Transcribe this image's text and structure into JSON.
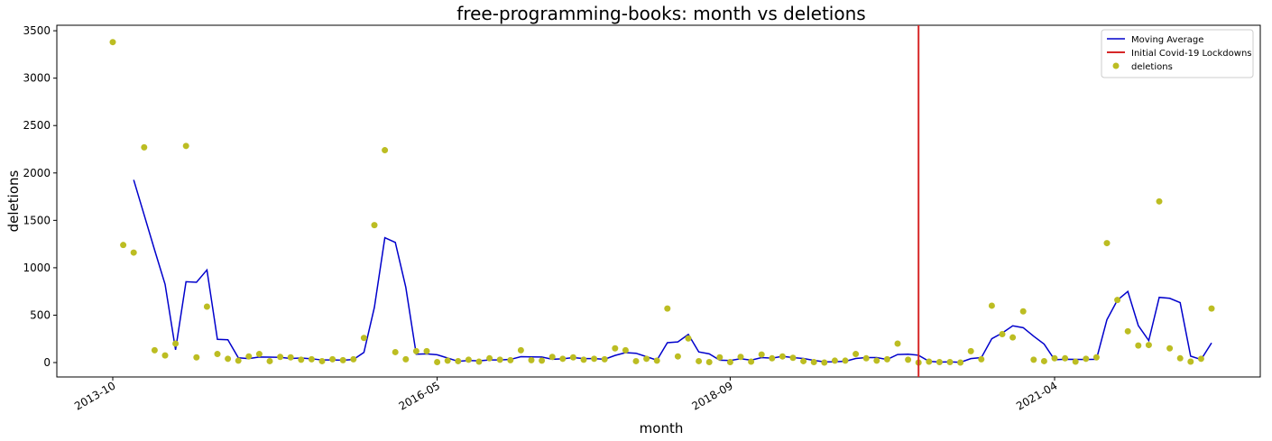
{
  "chart_data": {
    "type": "scatter",
    "title": "free-programming-books: month vs deletions",
    "xlabel": "month",
    "ylabel": "deletions",
    "x": [
      "2013-10",
      "2013-11",
      "2013-12",
      "2014-01",
      "2014-02",
      "2014-03",
      "2014-04",
      "2014-05",
      "2014-06",
      "2014-07",
      "2014-08",
      "2014-09",
      "2014-10",
      "2014-11",
      "2014-12",
      "2015-01",
      "2015-02",
      "2015-03",
      "2015-04",
      "2015-05",
      "2015-06",
      "2015-07",
      "2015-08",
      "2015-09",
      "2015-10",
      "2015-11",
      "2015-12",
      "2016-01",
      "2016-02",
      "2016-03",
      "2016-04",
      "2016-05",
      "2016-06",
      "2016-07",
      "2016-08",
      "2016-09",
      "2016-10",
      "2016-11",
      "2016-12",
      "2017-01",
      "2017-02",
      "2017-03",
      "2017-04",
      "2017-05",
      "2017-06",
      "2017-07",
      "2017-08",
      "2017-09",
      "2017-10",
      "2017-11",
      "2017-12",
      "2018-01",
      "2018-02",
      "2018-03",
      "2018-04",
      "2018-05",
      "2018-06",
      "2018-07",
      "2018-08",
      "2018-09",
      "2018-10",
      "2018-11",
      "2018-12",
      "2019-01",
      "2019-02",
      "2019-03",
      "2019-04",
      "2019-05",
      "2019-06",
      "2019-07",
      "2019-08",
      "2019-09",
      "2019-10",
      "2019-11",
      "2019-12",
      "2020-01",
      "2020-02",
      "2020-03",
      "2020-04",
      "2020-05",
      "2020-06",
      "2020-07",
      "2020-08",
      "2020-09",
      "2020-10",
      "2020-11",
      "2020-12",
      "2021-01",
      "2021-02",
      "2021-03",
      "2021-04",
      "2021-05",
      "2021-06",
      "2021-07",
      "2021-08",
      "2021-09",
      "2021-10",
      "2021-11",
      "2021-12",
      "2022-01",
      "2022-02",
      "2022-03",
      "2022-04",
      "2022-05",
      "2022-06",
      "2022-07"
    ],
    "series": [
      {
        "name": "Moving Average",
        "kind": "line",
        "color": "#0000cc",
        "values": [
          null,
          null,
          1927,
          1557,
          1187,
          825,
          135,
          853,
          847,
          977,
          245,
          240,
          50,
          42,
          58,
          57,
          55,
          43,
          48,
          40,
          27,
          28,
          25,
          32,
          107,
          582,
          1317,
          1267,
          795,
          88,
          92,
          82,
          48,
          13,
          22,
          18,
          28,
          28,
          33,
          62,
          60,
          58,
          35,
          40,
          52,
          42,
          42,
          35,
          75,
          105,
          98,
          62,
          25,
          210,
          218,
          297,
          112,
          92,
          25,
          22,
          40,
          25,
          52,
          47,
          65,
          53,
          43,
          23,
          7,
          8,
          13,
          43,
          52,
          52,
          33,
          85,
          88,
          77,
          13,
          5,
          7,
          3,
          42,
          52,
          252,
          312,
          388,
          368,
          278,
          195,
          30,
          35,
          33,
          32,
          35,
          452,
          658,
          750,
          390,
          232,
          688,
          678,
          632,
          68,
          32,
          207
        ]
      },
      {
        "name": "deletions",
        "kind": "scatter",
        "color": "#bcbd22",
        "values": [
          3380,
          1240,
          1160,
          2270,
          130,
          75,
          200,
          2285,
          55,
          590,
          90,
          40,
          20,
          65,
          90,
          15,
          60,
          55,
          30,
          35,
          15,
          35,
          25,
          35,
          260,
          1450,
          2240,
          110,
          35,
          120,
          120,
          5,
          20,
          15,
          30,
          10,
          45,
          30,
          25,
          130,
          25,
          20,
          60,
          40,
          55,
          30,
          40,
          35,
          150,
          130,
          15,
          40,
          20,
          570,
          65,
          255,
          15,
          5,
          55,
          5,
          60,
          10,
          85,
          45,
          65,
          50,
          15,
          5,
          0,
          20,
          20,
          90,
          45,
          20,
          35,
          200,
          30,
          0,
          10,
          5,
          5,
          0,
          120,
          35,
          600,
          300,
          265,
          540,
          30,
          15,
          45,
          45,
          10,
          40,
          55,
          1260,
          660,
          330,
          180,
          185,
          1700,
          150,
          45,
          10,
          40,
          570
        ]
      }
    ],
    "vlines": [
      {
        "name": "Initial Covid-19 Lockdowns",
        "x": "2020-03",
        "color": "#d62728"
      }
    ],
    "ylim": [
      -152,
      3558
    ],
    "yticks": [
      0,
      500,
      1000,
      1500,
      2000,
      2500,
      3000,
      3500
    ],
    "xticks": [
      "2013-10",
      "2016-05",
      "2018-09",
      "2021-04"
    ],
    "legend": "upper right"
  }
}
